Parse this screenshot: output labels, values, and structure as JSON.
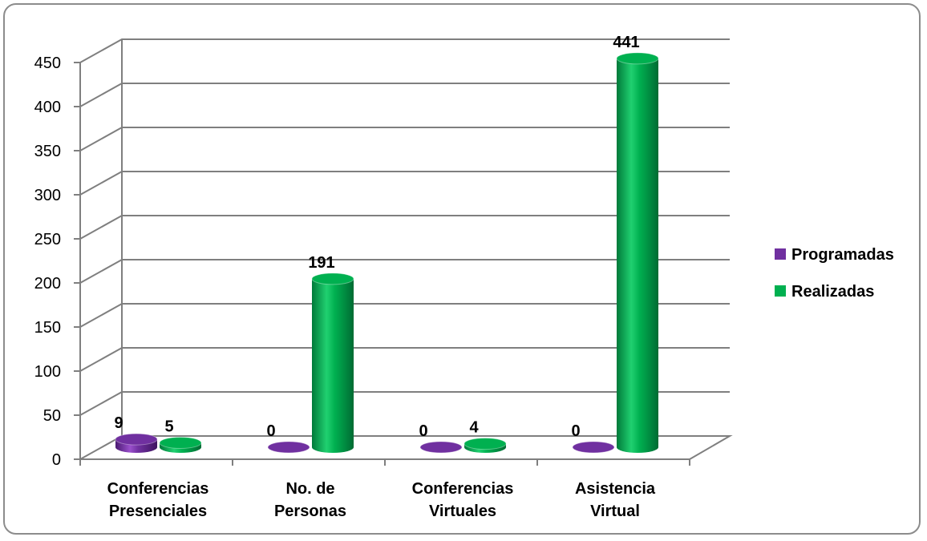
{
  "chart_data": {
    "type": "bar",
    "categories": [
      [
        "Conferencias",
        "Presenciales"
      ],
      [
        "No. de",
        "Personas"
      ],
      [
        "Conferencias",
        "Virtuales"
      ],
      [
        "Asistencia",
        "Virtual"
      ]
    ],
    "series": [
      {
        "name": "Programadas",
        "values": [
          9,
          0,
          0,
          0
        ],
        "color": "#7030a0"
      },
      {
        "name": "Realizadas",
        "values": [
          5,
          191,
          4,
          441
        ],
        "color": "#00b050"
      }
    ],
    "ylim": [
      0,
      450
    ],
    "yticks": [
      "0",
      "50",
      "100",
      "150",
      "200",
      "250",
      "300",
      "350",
      "400",
      "450"
    ],
    "grid": true,
    "legend": "right",
    "style": "3d-cylinder"
  }
}
